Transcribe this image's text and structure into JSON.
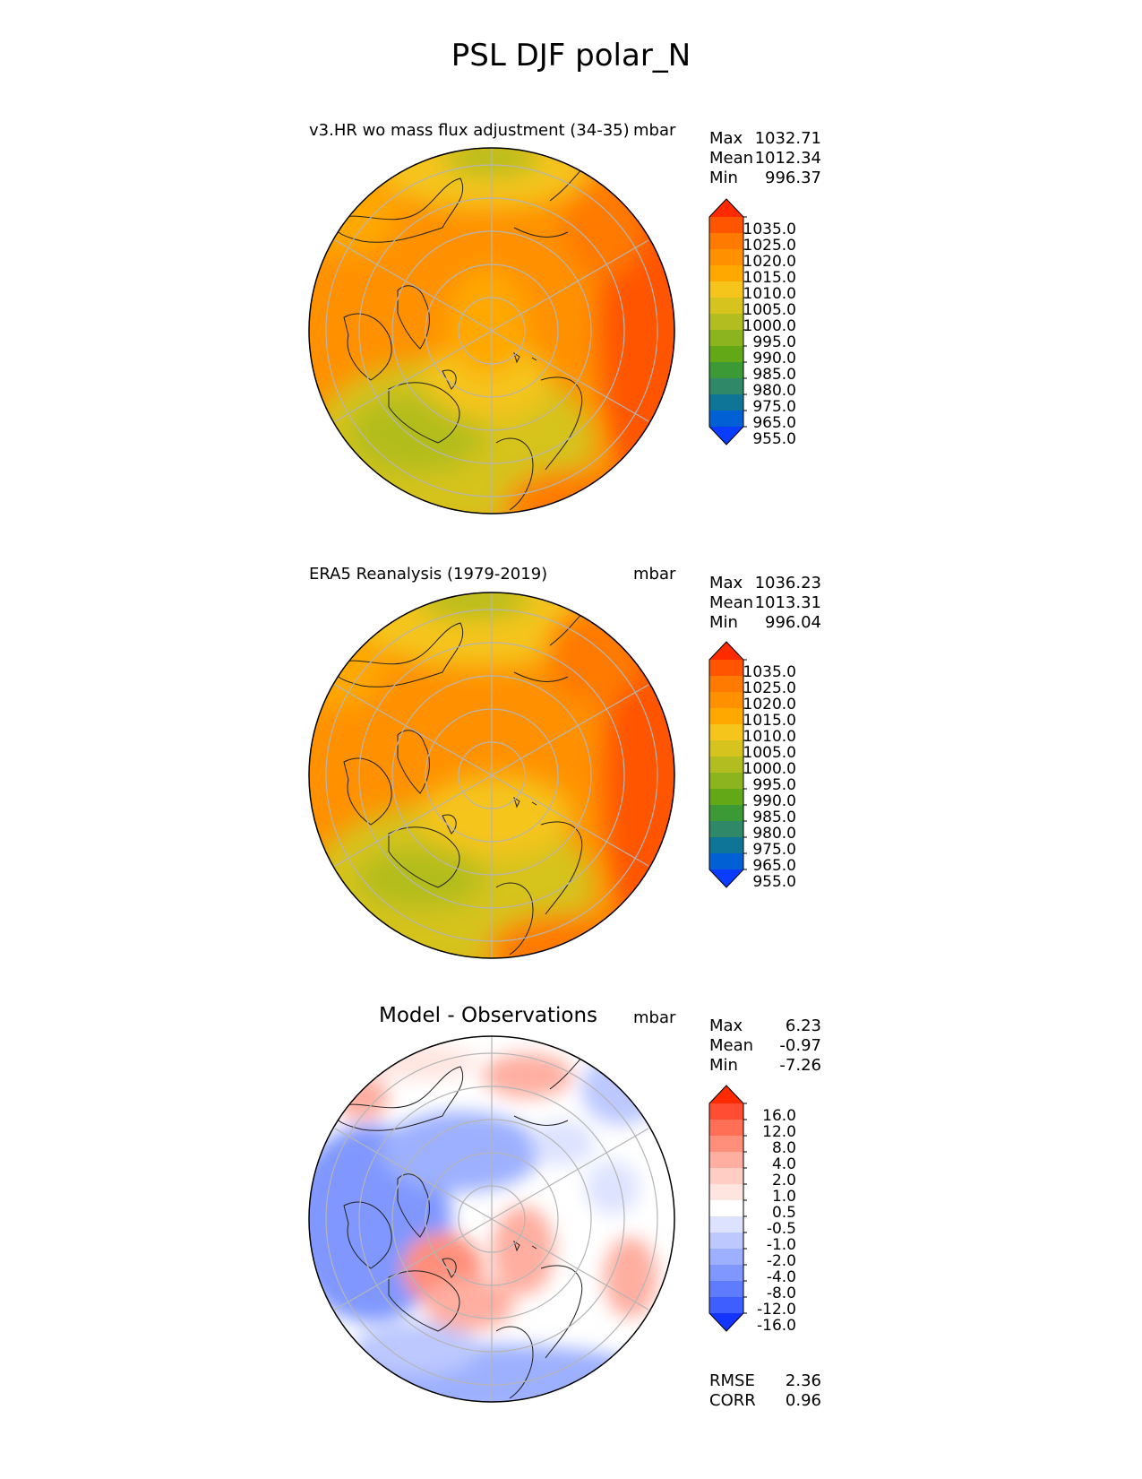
{
  "figure": {
    "title": "PSL DJF polar_N",
    "panels": [
      {
        "id": "test",
        "title": "v3.HR wo mass flux adjustment (34-35)",
        "units": "mbar",
        "stats": [
          {
            "label": "Max",
            "value": "1032.71"
          },
          {
            "label": "Mean",
            "value": "1012.34"
          },
          {
            "label": "Min",
            "value": "996.37"
          }
        ],
        "colorbar": {
          "labels": [
            "1035.0",
            "1025.0",
            "1020.0",
            "1015.0",
            "1010.0",
            "1005.0",
            "1000.0",
            "995.0",
            "990.0",
            "985.0",
            "980.0",
            "975.0",
            "965.0",
            "955.0"
          ],
          "colors": [
            "#ff2a00",
            "#ff5500",
            "#ff7a00",
            "#ff9100",
            "#ffa800",
            "#f5c51c",
            "#d6c31e",
            "#b2bd1f",
            "#8cb41e",
            "#62a817",
            "#3c9a36",
            "#2f8868",
            "#0f7596",
            "#0060d4",
            "#0a3cff"
          ]
        }
      },
      {
        "id": "reference",
        "title": "ERA5 Reanalysis (1979-2019)",
        "units": "mbar",
        "stats": [
          {
            "label": "Max",
            "value": "1036.23"
          },
          {
            "label": "Mean",
            "value": "1013.31"
          },
          {
            "label": "Min",
            "value": "996.04"
          }
        ],
        "colorbar": {
          "labels": [
            "1035.0",
            "1025.0",
            "1020.0",
            "1015.0",
            "1010.0",
            "1005.0",
            "1000.0",
            "995.0",
            "990.0",
            "985.0",
            "980.0",
            "975.0",
            "965.0",
            "955.0"
          ],
          "colors": [
            "#ff2a00",
            "#ff5500",
            "#ff7a00",
            "#ff9100",
            "#ffa800",
            "#f5c51c",
            "#d6c31e",
            "#b2bd1f",
            "#8cb41e",
            "#62a817",
            "#3c9a36",
            "#2f8868",
            "#0f7596",
            "#0060d4",
            "#0a3cff"
          ]
        }
      },
      {
        "id": "diff",
        "title": "Model - Observations",
        "units": "mbar",
        "stats": [
          {
            "label": "Max",
            "value": "6.23"
          },
          {
            "label": "Mean",
            "value": "-0.97"
          },
          {
            "label": "Min",
            "value": "-7.26"
          }
        ],
        "metrics": [
          {
            "label": "RMSE",
            "value": "2.36"
          },
          {
            "label": "CORR",
            "value": "0.96"
          }
        ],
        "colorbar": {
          "labels": [
            "16.0",
            "12.0",
            "8.0",
            "4.0",
            "2.0",
            "1.0",
            "0.5",
            "-0.5",
            "-1.0",
            "-2.0",
            "-4.0",
            "-8.0",
            "-12.0",
            "-16.0"
          ],
          "colors": [
            "#ff2a00",
            "#ff4d33",
            "#ff6f55",
            "#ff8f7a",
            "#ffaea0",
            "#ffcdc3",
            "#ffe5e0",
            "#ffffff",
            "#dde3ff",
            "#bcc8ff",
            "#9db0ff",
            "#7f97ff",
            "#5f7cff",
            "#3e5eff",
            "#1434ff"
          ]
        }
      }
    ]
  }
}
